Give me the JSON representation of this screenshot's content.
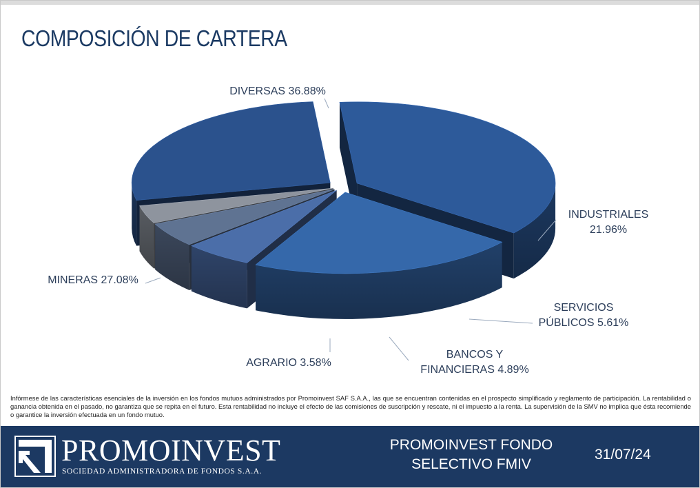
{
  "header": {
    "title": "COMPOSICIÓN DE CARTERA"
  },
  "chart_data": {
    "type": "pie",
    "title": "COMPOSICIÓN DE CARTERA",
    "categories": [
      "DIVERSAS",
      "INDUSTRIALES",
      "SERVICIOS PÚBLICOS",
      "BANCOS Y FINANCIERAS",
      "AGRARIO",
      "MINERAS"
    ],
    "values": [
      36.88,
      21.96,
      5.61,
      4.89,
      3.58,
      27.08
    ],
    "labels": [
      {
        "lines": [
          "DIVERSAS 36.88%"
        ]
      },
      {
        "lines": [
          "INDUSTRIALES",
          "21.96%"
        ]
      },
      {
        "lines": [
          "SERVICIOS",
          "PÚBLICOS 5.61%"
        ]
      },
      {
        "lines": [
          "BANCOS Y",
          "FINANCIERAS 4.89%"
        ]
      },
      {
        "lines": [
          "AGRARIO 3.58%"
        ]
      },
      {
        "lines": [
          "MINERAS 27.08%"
        ]
      }
    ],
    "colors": [
      "#2d5a9a",
      "#3568aa",
      "#4b6ea9",
      "#5f7392",
      "#8e949e",
      "#2b528d"
    ],
    "legend": "none",
    "style": "3d-exploded-pie"
  },
  "disclaimer": "Infórmese de las características esenciales de la inversión en los fondos mutuos administrados por Promoinvest SAF S.A.A., las que se encuentran contenidas en el prospecto simplificado y reglamento de participación. La rentabilidad o ganancia obtenida en el pasado, no garantiza que se repita en el futuro. Esta rentabilidad no incluye el efecto de las comisiones de suscripción y rescate, ni el impuesto a la renta. La supervisión de la SMV no implica que ésta recomiende o garantice la inversión efectuada en un fondo mutuo.",
  "footer": {
    "brand": "PROMOINVEST",
    "brand_sub": "SOCIEDAD ADMINISTRADORA DE FONDOS S.A.A.",
    "fund_line1": "PROMOINVEST FONDO",
    "fund_line2": "SELECTIVO FMIV",
    "date": "31/07/24",
    "bg_color": "#1c3962"
  }
}
